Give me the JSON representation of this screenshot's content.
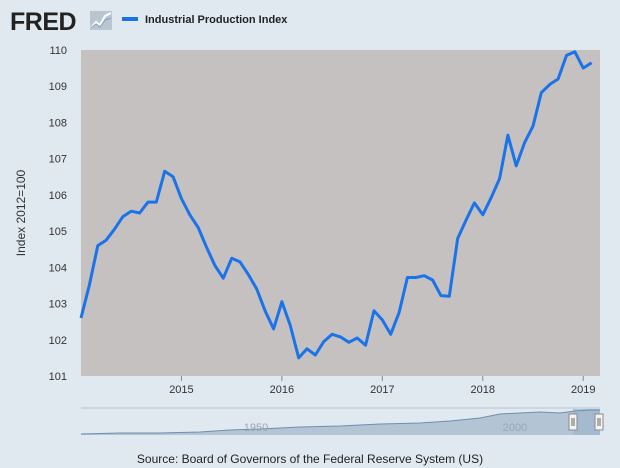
{
  "logo": {
    "text": "FRED"
  },
  "colors": {
    "series": "#1a73e8",
    "plot_bg": "#c5c1c1",
    "page_bg": "#e1e9f0"
  },
  "source": "Source: Board of Governors of the Federal Reserve System (US)",
  "navigator": {
    "labels": [
      "1950",
      "2000"
    ]
  },
  "chart_data": {
    "type": "line",
    "title": "",
    "legend": [
      "Industrial Production Index"
    ],
    "legend_position": "top-left",
    "xlabel": "",
    "ylabel": "Index 2012=100",
    "xlim": [
      2014.0,
      2019.167
    ],
    "ylim": [
      101,
      110
    ],
    "grid": false,
    "x_ticks": [
      2015,
      2016,
      2017,
      2018,
      2019
    ],
    "x_tick_labels": [
      "2015",
      "2016",
      "2017",
      "2018",
      "2019"
    ],
    "y_ticks": [
      101,
      102,
      103,
      104,
      105,
      106,
      107,
      108,
      109,
      110
    ],
    "y_tick_labels": [
      "101",
      "102",
      "103",
      "104",
      "105",
      "106",
      "107",
      "108",
      "109",
      "110"
    ],
    "series": [
      {
        "name": "Industrial Production Index",
        "x": [
          2014.0,
          2014.083,
          2014.167,
          2014.25,
          2014.333,
          2014.417,
          2014.5,
          2014.583,
          2014.667,
          2014.75,
          2014.833,
          2014.917,
          2015.0,
          2015.083,
          2015.167,
          2015.25,
          2015.333,
          2015.417,
          2015.5,
          2015.583,
          2015.667,
          2015.75,
          2015.833,
          2015.917,
          2016.0,
          2016.083,
          2016.167,
          2016.25,
          2016.333,
          2016.417,
          2016.5,
          2016.583,
          2016.667,
          2016.75,
          2016.833,
          2016.917,
          2017.0,
          2017.083,
          2017.167,
          2017.25,
          2017.333,
          2017.417,
          2017.5,
          2017.583,
          2017.667,
          2017.75,
          2017.833,
          2017.917,
          2018.0,
          2018.083,
          2018.167,
          2018.25,
          2018.333,
          2018.417,
          2018.5,
          2018.583,
          2018.667,
          2018.75,
          2018.833,
          2018.917,
          2019.0,
          2019.083
        ],
        "y": [
          102.6,
          103.5,
          104.6,
          104.75,
          105.05,
          105.4,
          105.55,
          105.5,
          105.8,
          105.8,
          106.65,
          106.5,
          105.9,
          105.45,
          105.1,
          104.55,
          104.05,
          103.7,
          104.25,
          104.15,
          103.8,
          103.4,
          102.8,
          102.3,
          103.05,
          102.4,
          101.5,
          101.75,
          101.58,
          101.95,
          102.15,
          102.08,
          101.93,
          102.05,
          101.85,
          102.8,
          102.55,
          102.15,
          102.75,
          103.72,
          103.72,
          103.77,
          103.65,
          103.22,
          103.2,
          104.8,
          105.3,
          105.78,
          105.45,
          105.92,
          106.45,
          107.65,
          106.8,
          107.45,
          107.9,
          108.82,
          109.05,
          109.2,
          109.85,
          109.95,
          109.5,
          109.65
        ]
      }
    ]
  }
}
